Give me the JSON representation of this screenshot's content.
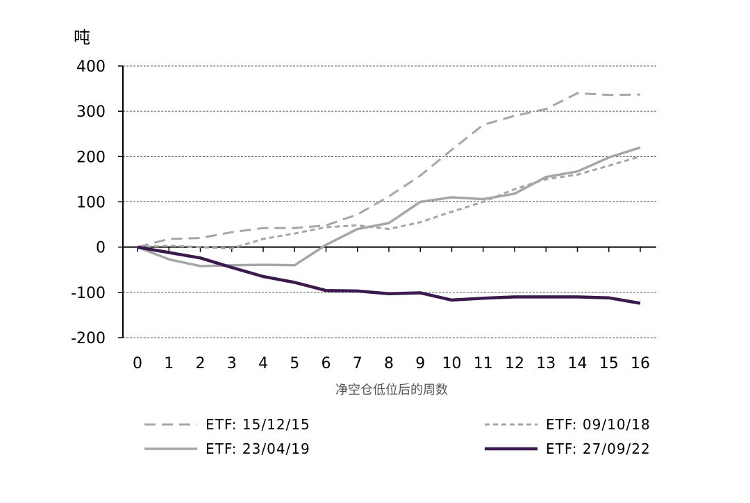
{
  "chart_data": {
    "type": "line",
    "ylabel": "吨",
    "xlabel": "净空仓低位后的周数",
    "x": [
      0,
      1,
      2,
      3,
      4,
      5,
      6,
      7,
      8,
      9,
      10,
      11,
      12,
      13,
      14,
      15,
      16
    ],
    "xlim": [
      0,
      16
    ],
    "ylim": [
      -200,
      400
    ],
    "yticks": [
      400,
      300,
      200,
      100,
      0,
      -100,
      -200
    ],
    "grid": true,
    "legend_position": "bottom",
    "series": [
      {
        "name": "ETF: 15/12/15",
        "style": "long-dash",
        "color": "#a6a6a6",
        "values": [
          0,
          18,
          20,
          33,
          42,
          42,
          48,
          72,
          112,
          158,
          215,
          270,
          290,
          305,
          340,
          336,
          337
        ]
      },
      {
        "name": "ETF: 09/10/18",
        "style": "short-dash",
        "color": "#a6a6a6",
        "values": [
          0,
          3,
          0,
          -3,
          18,
          30,
          44,
          48,
          40,
          55,
          78,
          100,
          128,
          150,
          160,
          180,
          200
        ]
      },
      {
        "name": "ETF: 23/04/19",
        "style": "solid",
        "color": "#a6a6a6",
        "values": [
          0,
          -27,
          -42,
          -40,
          -39,
          -40,
          5,
          40,
          53,
          100,
          110,
          106,
          118,
          155,
          167,
          198,
          220
        ]
      },
      {
        "name": "ETF: 27/09/22",
        "style": "solid-thick",
        "color": "#3b1a4e",
        "values": [
          0,
          -12,
          -24,
          -45,
          -65,
          -78,
          -96,
          -97,
          -103,
          -101,
          -117,
          -113,
          -110,
          -110,
          -110,
          -112,
          -124
        ]
      }
    ]
  }
}
